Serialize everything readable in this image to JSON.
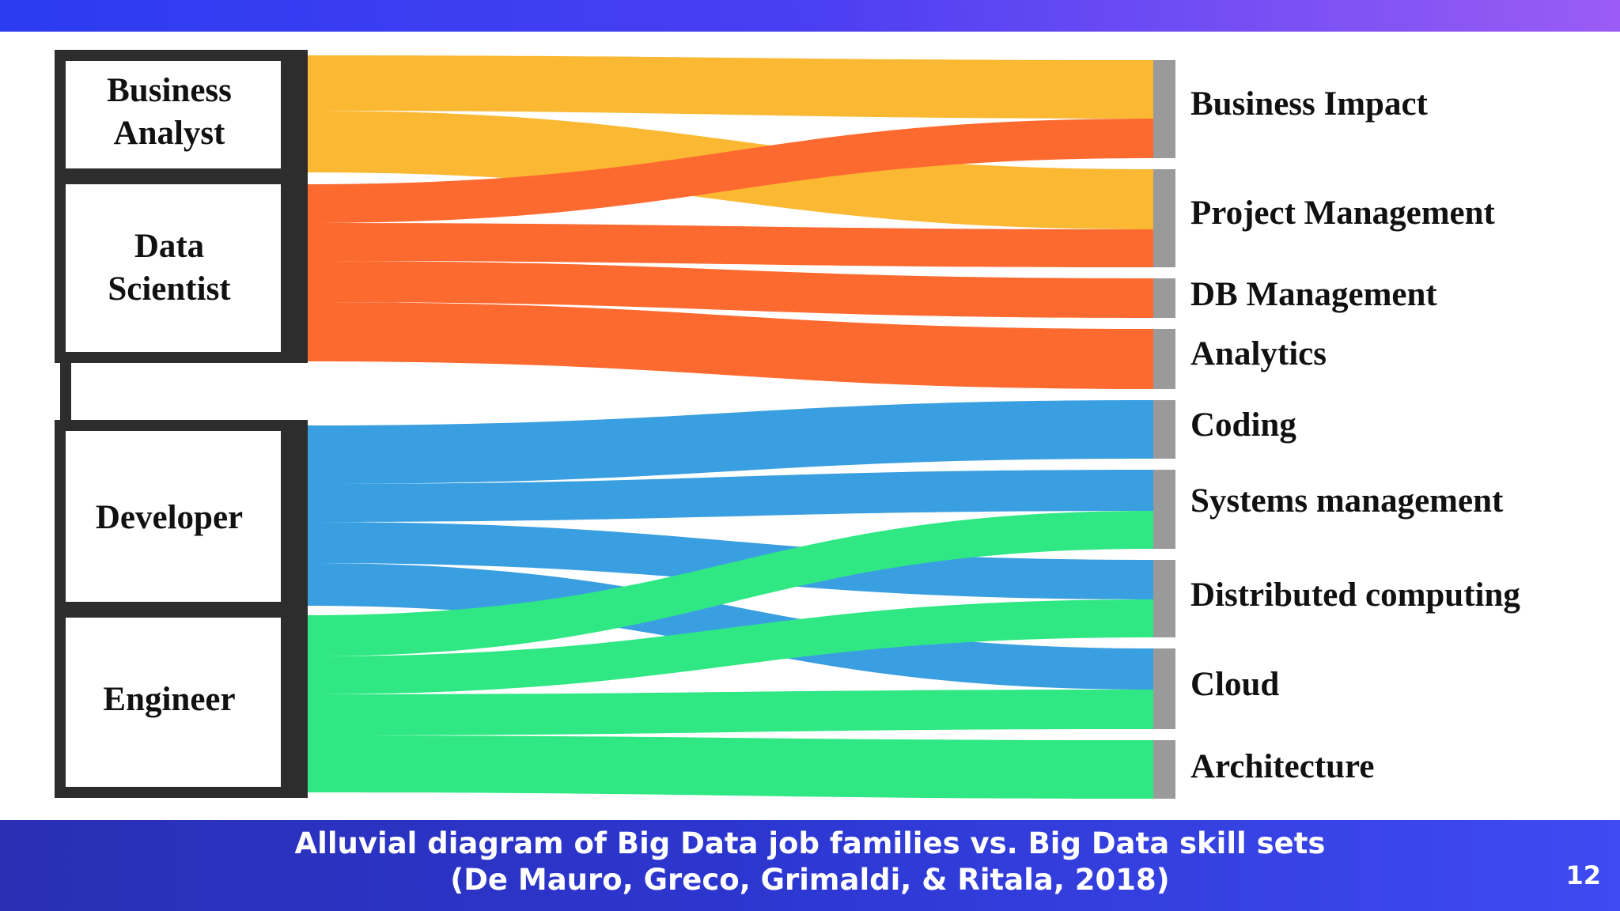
{
  "caption": {
    "line1": "Alluvial diagram of Big Data job families vs. Big Data skill sets",
    "line2": "(De Mauro, Greco, Grimaldi, & Ritala, 2018)"
  },
  "page_number": "12",
  "colors": {
    "business_analyst": "#fbb833",
    "data_scientist": "#fd6a30",
    "developer": "#3a9fe1",
    "engineer": "#2fe884",
    "node_bar_left": "#2d2d2d",
    "node_bar_right": "#9a9a9a"
  },
  "diagram": {
    "jobs": [
      {
        "label_lines": [
          "Business",
          "Analyst"
        ],
        "color": "#fbb833"
      },
      {
        "label_lines": [
          "Data",
          "Scientist"
        ],
        "color": "#fd6a30"
      },
      {
        "label_lines": [
          "Developer"
        ],
        "color": "#3a9fe1"
      },
      {
        "label_lines": [
          "Engineer"
        ],
        "color": "#2fe884"
      }
    ],
    "skills": [
      "Business Impact",
      "Project Management",
      "DB Management",
      "Analytics",
      "Coding",
      "Systems management",
      "Distributed computing",
      "Cloud",
      "Architecture"
    ]
  }
}
